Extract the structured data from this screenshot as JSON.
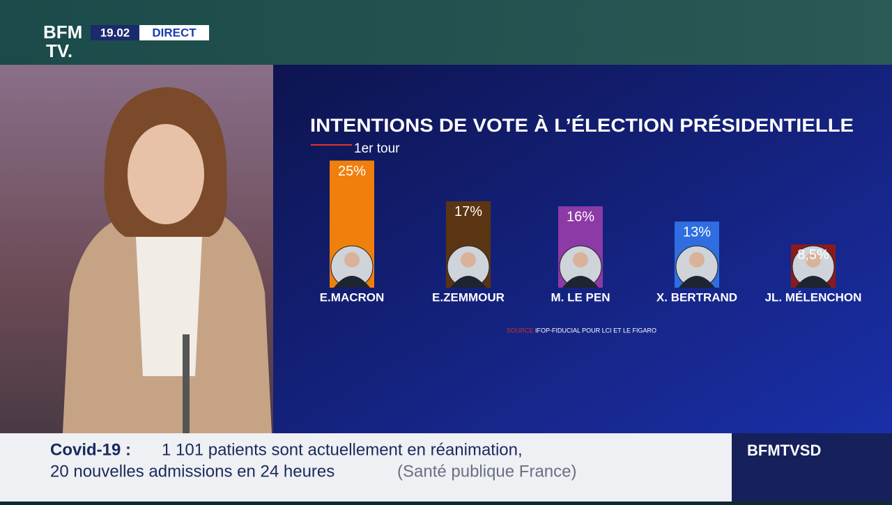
{
  "broadcast": {
    "logo_top": "BFM",
    "logo_bottom": "TV.",
    "time": "19.02",
    "live": "DIRECT",
    "ticker_topic": "Covid-19 :",
    "ticker_line1": "1 101 patients sont actuellement en réanimation,",
    "ticker_line2": "20 nouvelles admissions en 24 heures",
    "ticker_source": "(Santé publique France)",
    "channel": "BFMTVSD"
  },
  "chart_data": {
    "type": "bar",
    "title": "INTENTIONS DE VOTE À L’ÉLECTION PRÉSIDENTIELLE",
    "subtitle": "1er tour",
    "categories": [
      "E.MACRON",
      "E.ZEMMOUR",
      "M. LE PEN",
      "X. BERTRAND",
      "JL. MÉLENCHON"
    ],
    "values": [
      25,
      17,
      16,
      13,
      8.5
    ],
    "value_labels": [
      "25%",
      "17%",
      "16%",
      "13%",
      "8,5%"
    ],
    "colors": [
      "#f07f0c",
      "#5b3512",
      "#8c3aa6",
      "#2f6ee0",
      "#8b1a1c"
    ],
    "source_label": "SOURCE",
    "source": "IFOP-FIDUCIAL POUR LCI ET LE FIGARO"
  }
}
